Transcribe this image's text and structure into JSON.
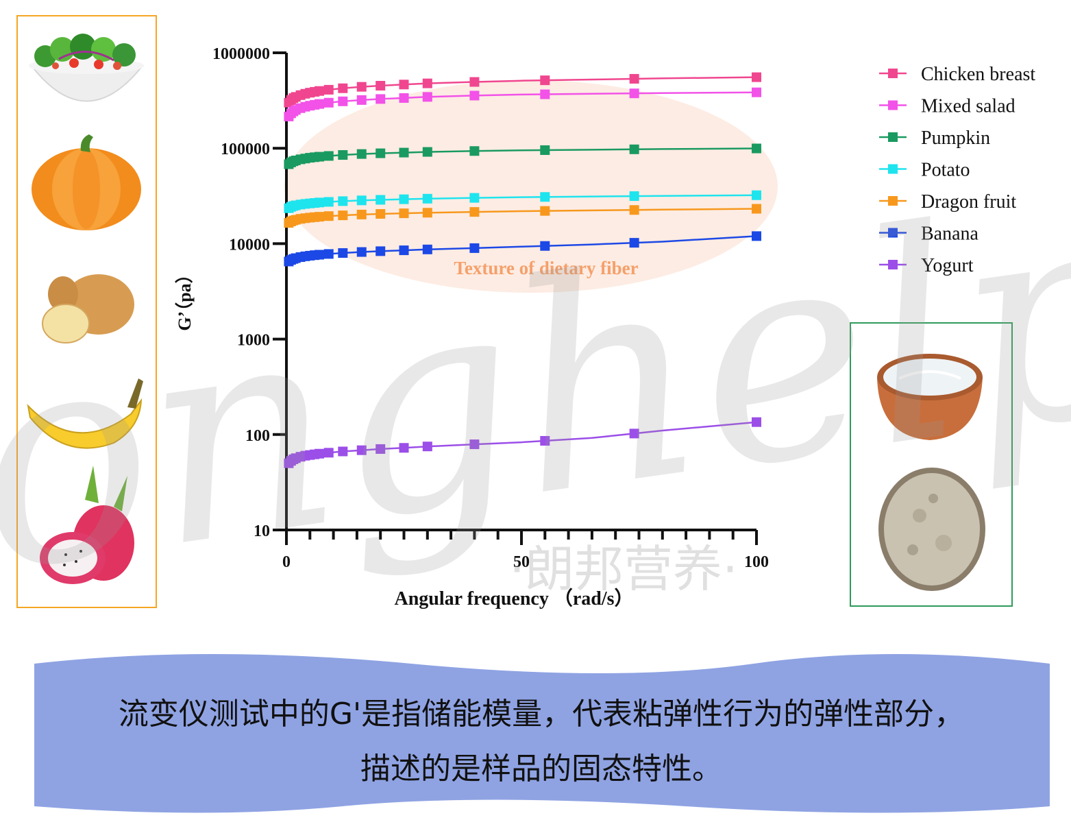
{
  "chart_data": {
    "type": "line",
    "title": "",
    "xlabel": "Angular  frequency （rad/s）",
    "ylabel": "G’（pa）",
    "yscale": "log",
    "xlim": [
      0,
      100
    ],
    "ylim": [
      10,
      1000000
    ],
    "x_ticks": [
      "0",
      "50",
      "100"
    ],
    "y_ticks": [
      "10",
      "100",
      "1000",
      "10000",
      "100000",
      "1000000"
    ],
    "x": [
      0.5,
      1,
      1.5,
      2,
      3,
      4,
      5,
      6,
      7,
      9,
      12,
      16,
      20,
      25,
      30,
      40,
      50,
      65,
      80,
      100
    ],
    "series": [
      {
        "name": "Chicken breast",
        "color": "#f0468f",
        "values": [
          300000,
          320000,
          335000,
          345000,
          360000,
          372000,
          382000,
          390000,
          398000,
          410000,
          425000,
          440000,
          452000,
          465000,
          478000,
          495000,
          510000,
          525000,
          540000,
          555000
        ]
      },
      {
        "name": "Mixed salad",
        "color": "#f252e8",
        "values": [
          215000,
          232000,
          243000,
          252000,
          263000,
          272000,
          279000,
          285000,
          291000,
          300000,
          310000,
          320000,
          328000,
          336000,
          345000,
          356000,
          365000,
          372000,
          378000,
          385000
        ]
      },
      {
        "name": "Pumpkin",
        "color": "#1a9a60",
        "values": [
          68000,
          71000,
          73000,
          74500,
          76500,
          78000,
          79500,
          80500,
          81500,
          83000,
          85000,
          87000,
          88500,
          90000,
          91500,
          93500,
          95000,
          96500,
          98000,
          99500
        ]
      },
      {
        "name": "Potato",
        "color": "#1ee4ee",
        "values": [
          23500,
          24300,
          24800,
          25200,
          25700,
          26100,
          26400,
          26700,
          27000,
          27400,
          27900,
          28400,
          28800,
          29200,
          29600,
          30200,
          30700,
          31200,
          31700,
          32200
        ]
      },
      {
        "name": "Dragon fruit",
        "color": "#f7981d",
        "values": [
          16500,
          17100,
          17500,
          17800,
          18200,
          18500,
          18750,
          18950,
          19150,
          19450,
          19800,
          20200,
          20500,
          20800,
          21100,
          21500,
          21900,
          22300,
          22700,
          23200
        ]
      },
      {
        "name": "Banana",
        "color": "#1c48e6",
        "values": [
          6500,
          6750,
          6920,
          7050,
          7230,
          7370,
          7480,
          7580,
          7660,
          7800,
          7980,
          8180,
          8340,
          8520,
          8700,
          8980,
          9300,
          9800,
          10500,
          12000
        ]
      },
      {
        "name": "Yogurt",
        "color": "#9b4ee8",
        "values": [
          50,
          53,
          55,
          56.5,
          58.5,
          60,
          61,
          62,
          63,
          64.5,
          66.5,
          68.5,
          70.5,
          72.5,
          75,
          79,
          83,
          92,
          110,
          135
        ]
      }
    ],
    "marker_x": [
      0.5,
      1,
      1.5,
      2,
      3,
      4,
      5,
      6,
      7,
      9,
      12,
      16,
      20,
      25,
      30,
      40,
      55,
      74,
      100
    ],
    "annotation": "Texture of dietary fiber",
    "grid": false,
    "legend_position": "top-right"
  },
  "caption": {
    "line1": "流变仪测试中的G'是指储能模量，代表粘弹性行为的弹性部分，",
    "line2": "描述的是样品的固态特性。"
  },
  "watermark": {
    "script_text": "longhelp",
    "cn_text": "·朗邦营养·"
  },
  "left_panel": {
    "images": [
      "salad-bowl-image",
      "pumpkin-image",
      "potato-image",
      "banana-image",
      "dragon-fruit-image"
    ]
  },
  "right_panel": {
    "images": [
      "yogurt-bowl-image",
      "fiber-powder-image"
    ]
  },
  "colors": {
    "left_border": "#f5a623",
    "right_border": "#2e9a5a",
    "caption_band": "#8fa3e3",
    "annotation_ellipse": "#fce6d9",
    "annotation_text": "#f5a06b"
  }
}
